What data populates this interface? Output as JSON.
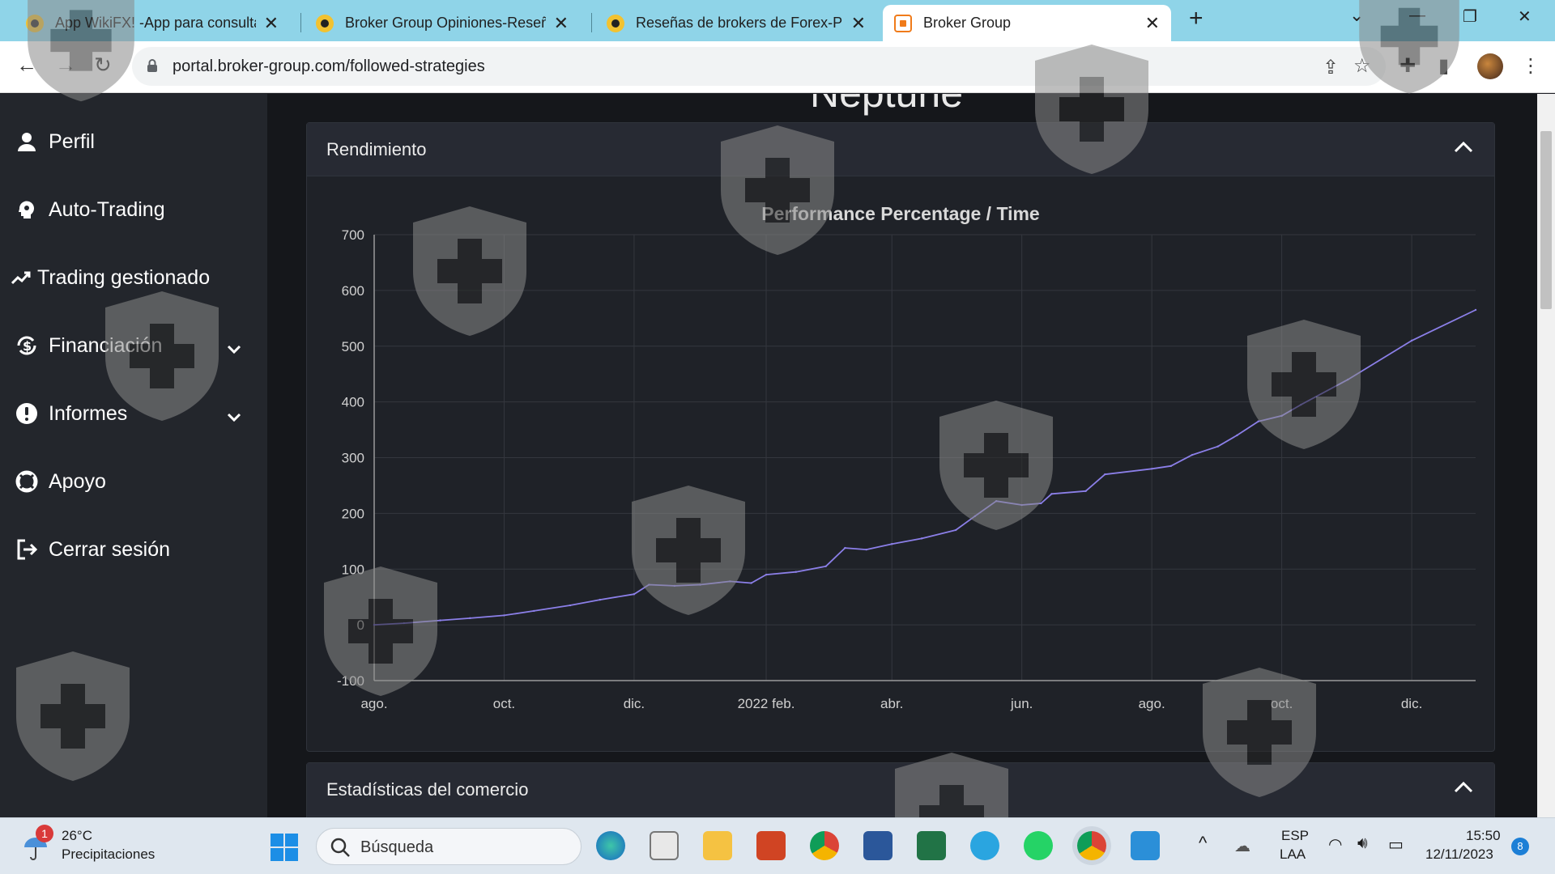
{
  "browser": {
    "tabs": [
      {
        "title": "App WikiFX! -App para consulta",
        "active": false
      },
      {
        "title": "Broker Group Opiniones-Reseña",
        "active": false
      },
      {
        "title": "Reseñas de brokers de Forex-Pla",
        "active": false
      },
      {
        "title": "Broker Group",
        "active": true
      }
    ],
    "url": "portal.broker-group.com/followed-strategies"
  },
  "sidebar": {
    "items": [
      {
        "label": "Perfil",
        "icon": "user-icon",
        "expandable": false
      },
      {
        "label": "Auto-Trading",
        "icon": "robot-head-icon",
        "expandable": false
      },
      {
        "label": "Trading gestionado",
        "icon": "trend-up-icon",
        "expandable": false
      },
      {
        "label": "Financiación",
        "icon": "dollar-sync-icon",
        "expandable": true
      },
      {
        "label": "Informes",
        "icon": "alert-circle-icon",
        "expandable": true
      },
      {
        "label": "Apoyo",
        "icon": "lifebuoy-icon",
        "expandable": false
      },
      {
        "label": "Cerrar sesión",
        "icon": "logout-icon",
        "expandable": false
      }
    ]
  },
  "main": {
    "strategy_name": "Neptune",
    "performance_card": {
      "title": "Rendimiento"
    },
    "stats_card": {
      "title": "Estadísticas del comercio"
    }
  },
  "chart_data": {
    "type": "line",
    "title": "Performance Percentage / Time",
    "xlabel": "",
    "ylabel": "",
    "ylim": [
      -100,
      700
    ],
    "yticks": [
      -100,
      0,
      100,
      200,
      300,
      400,
      500,
      600,
      700
    ],
    "xlim": [
      "2021-08-01",
      "2022-12-31"
    ],
    "xticks": [
      {
        "date": "2021-08-01",
        "label": "ago."
      },
      {
        "date": "2021-10-01",
        "label": "oct."
      },
      {
        "date": "2021-12-01",
        "label": "dic."
      },
      {
        "date": "2022-02-01",
        "label": "2022 feb."
      },
      {
        "date": "2022-04-01",
        "label": "abr."
      },
      {
        "date": "2022-06-01",
        "label": "jun."
      },
      {
        "date": "2022-08-01",
        "label": "ago."
      },
      {
        "date": "2022-10-01",
        "label": "oct."
      },
      {
        "date": "2022-12-01",
        "label": "dic."
      }
    ],
    "grid": true,
    "line_color": "#8b7fe8",
    "series": [
      {
        "name": "",
        "points": [
          {
            "x": "2021-08-01",
            "y": 0
          },
          {
            "x": "2021-08-15",
            "y": 3
          },
          {
            "x": "2021-09-01",
            "y": 8
          },
          {
            "x": "2021-09-15",
            "y": 12
          },
          {
            "x": "2021-10-01",
            "y": 17
          },
          {
            "x": "2021-10-15",
            "y": 25
          },
          {
            "x": "2021-11-01",
            "y": 35
          },
          {
            "x": "2021-11-15",
            "y": 45
          },
          {
            "x": "2021-12-01",
            "y": 55
          },
          {
            "x": "2021-12-08",
            "y": 72
          },
          {
            "x": "2021-12-20",
            "y": 70
          },
          {
            "x": "2022-01-01",
            "y": 72
          },
          {
            "x": "2022-01-15",
            "y": 78
          },
          {
            "x": "2022-01-25",
            "y": 75
          },
          {
            "x": "2022-02-01",
            "y": 90
          },
          {
            "x": "2022-02-15",
            "y": 95
          },
          {
            "x": "2022-03-01",
            "y": 105
          },
          {
            "x": "2022-03-10",
            "y": 138
          },
          {
            "x": "2022-03-20",
            "y": 135
          },
          {
            "x": "2022-04-01",
            "y": 145
          },
          {
            "x": "2022-04-15",
            "y": 155
          },
          {
            "x": "2022-05-01",
            "y": 170
          },
          {
            "x": "2022-05-10",
            "y": 195
          },
          {
            "x": "2022-05-20",
            "y": 222
          },
          {
            "x": "2022-06-01",
            "y": 215
          },
          {
            "x": "2022-06-10",
            "y": 218
          },
          {
            "x": "2022-06-15",
            "y": 235
          },
          {
            "x": "2022-07-01",
            "y": 240
          },
          {
            "x": "2022-07-10",
            "y": 270
          },
          {
            "x": "2022-08-01",
            "y": 280
          },
          {
            "x": "2022-08-10",
            "y": 285
          },
          {
            "x": "2022-08-20",
            "y": 305
          },
          {
            "x": "2022-09-01",
            "y": 320
          },
          {
            "x": "2022-09-10",
            "y": 340
          },
          {
            "x": "2022-09-20",
            "y": 365
          },
          {
            "x": "2022-10-01",
            "y": 375
          },
          {
            "x": "2022-10-10",
            "y": 395
          },
          {
            "x": "2022-11-01",
            "y": 440
          },
          {
            "x": "2022-12-01",
            "y": 510
          },
          {
            "x": "2022-12-31",
            "y": 565
          }
        ]
      }
    ]
  },
  "taskbar": {
    "weather": {
      "temp": "26°C",
      "desc": "Precipitaciones",
      "badge": "1"
    },
    "search_placeholder": "Búsqueda",
    "lang": {
      "code": "ESP",
      "layout": "LAA"
    },
    "clock": {
      "time": "15:50",
      "date": "12/11/2023"
    },
    "notification_count": "8"
  },
  "colors": {
    "sidebar_bg": "#23262c",
    "main_bg": "#15171b",
    "card_bg": "#1f2228",
    "card_header_bg": "#272a33",
    "tabbar_bg": "#8fd4e8"
  }
}
